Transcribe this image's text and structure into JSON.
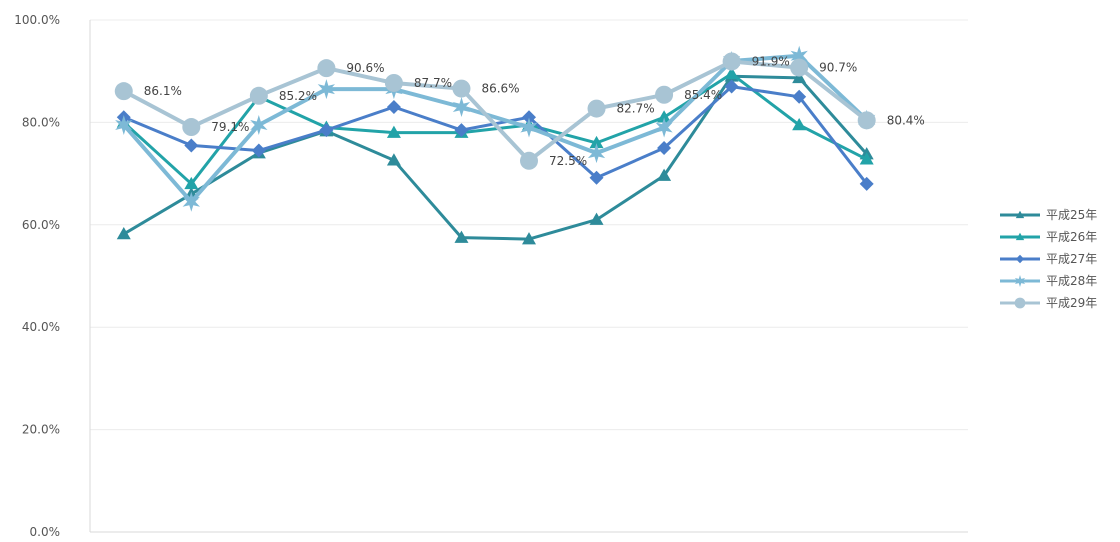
{
  "chart_data": {
    "type": "line",
    "title": "",
    "xlabel": "",
    "ylabel": "",
    "ylim": [
      0,
      100
    ],
    "y_ticks": [
      "0.0%",
      "20.0%",
      "40.0%",
      "60.0%",
      "80.0%",
      "100.0%"
    ],
    "grid": true,
    "legend_position": "right",
    "x": [
      1,
      2,
      3,
      4,
      5,
      6,
      7,
      8,
      9,
      10,
      11,
      12,
      13
    ],
    "series": [
      {
        "name": "平成25年",
        "color": "#2e8b9a",
        "marker": "triangle",
        "values": [
          58.2,
          66.0,
          74.0,
          78.3,
          72.6,
          57.5,
          57.2,
          61.0,
          69.6,
          89.0,
          88.7,
          73.8,
          null
        ]
      },
      {
        "name": "平成26年",
        "color": "#22a3a8",
        "marker": "triangle",
        "values": [
          80.0,
          68.0,
          85.0,
          79.0,
          78.0,
          78.0,
          79.5,
          76.0,
          81.0,
          89.5,
          79.5,
          72.8,
          null
        ]
      },
      {
        "name": "平成27年",
        "color": "#4a7ec9",
        "marker": "diamond",
        "values": [
          81.0,
          75.5,
          74.5,
          78.5,
          83.0,
          78.5,
          81.0,
          69.2,
          75.0,
          87.0,
          85.0,
          68.0,
          null
        ]
      },
      {
        "name": "平成28年",
        "color": "#7db9d6",
        "marker": "star",
        "values": [
          79.5,
          64.5,
          79.5,
          86.5,
          86.5,
          83.0,
          79.0,
          74.0,
          79.0,
          92.0,
          93.0,
          80.5,
          null
        ]
      },
      {
        "name": "平成29年",
        "color": "#a8c4d4",
        "marker": "circle",
        "values": [
          86.1,
          79.1,
          85.2,
          90.6,
          87.7,
          86.6,
          72.5,
          82.7,
          85.4,
          91.9,
          90.7,
          80.4,
          null
        ]
      }
    ],
    "data_labels": {
      "series_index": 4,
      "labels": [
        "86.1%",
        "79.1%",
        "85.2%",
        "90.6%",
        "87.7%",
        "86.6%",
        "72.5%",
        "82.7%",
        "85.4%",
        "91.9%",
        "90.7%",
        "80.4%"
      ]
    }
  }
}
